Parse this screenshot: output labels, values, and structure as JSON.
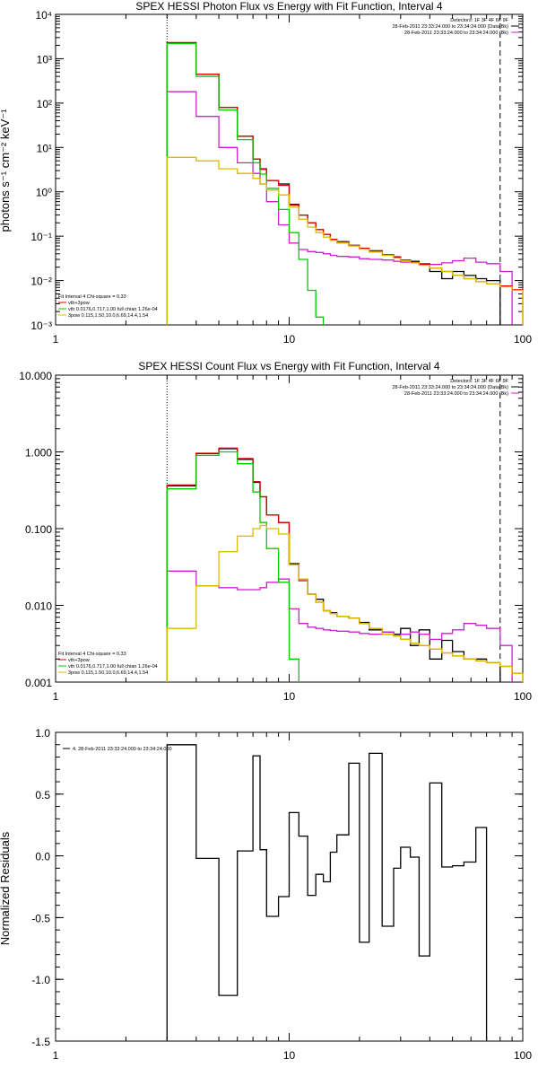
{
  "chart_data": [
    {
      "type": "line",
      "title": "SPEX HESSI Photon Flux vs Energy with Fit Function, Interval 4",
      "ylabel": "photons s⁻¹ cm⁻² keV⁻¹",
      "xlabel": "",
      "xscale": "log",
      "yscale": "log",
      "xlim": [
        1,
        100
      ],
      "ylim": [
        0.001,
        10000
      ],
      "x_tick_labels": [
        "1",
        "10",
        "100"
      ],
      "y_tick_labels": [
        "10⁻³",
        "10⁻²",
        "10⁻¹",
        "10⁰",
        "10¹",
        "10²",
        "10³",
        "10⁴"
      ],
      "legend_top_right": [
        "Detectors: 1F 3F 4F 6F 9F",
        "28-Feb-2011 23:33:24.000 to 23:34:24.000 (Data-Bk)",
        "28-Feb-2011 23:33:24.000 to 23:34:24.000 (Bk)"
      ],
      "legend_bottom_left": [
        "Fit Interval  4    Chi-square = 0.33",
        "vth+3pow",
        "vth 0.0176,0.717,1.00   full chian 1.26e-04",
        "3pow  0.115,1.50,10.0,6.69,14.4,1.54"
      ],
      "annotations": {
        "fit_range_low_keV": 3,
        "fit_range_high_keV": 80
      },
      "edges": [
        3,
        4,
        5,
        6,
        7,
        7.5,
        8,
        9,
        10,
        11,
        12,
        13,
        14,
        15,
        16,
        18,
        20,
        22,
        25,
        28,
        30,
        33,
        36,
        40,
        45,
        50,
        56,
        63,
        70,
        80,
        90,
        100
      ],
      "series": [
        {
          "name": "Data-Bk",
          "color": "#000000",
          "values": [
            2300,
            450,
            80,
            18,
            5.5,
            3.3,
            1.8,
            1.5,
            0.52,
            0.3,
            0.2,
            0.14,
            0.11,
            0.085,
            0.075,
            0.062,
            0.053,
            0.047,
            0.038,
            0.034,
            0.029,
            0.027,
            0.024,
            0.016,
            0.011,
            0.016,
            0.013,
            0.011,
            0.01,
            null,
            null
          ]
        },
        {
          "name": "Bk",
          "color": "#cc22cc",
          "values": [
            180,
            50,
            10,
            4.5,
            2.6,
            1.5,
            0.6,
            0.18,
            0.07,
            0.05,
            0.045,
            0.043,
            0.04,
            0.037,
            0.035,
            0.034,
            0.031,
            0.03,
            0.029,
            0.027,
            0.026,
            0.025,
            0.024,
            0.023,
            0.025,
            0.028,
            0.032,
            0.026,
            0.024,
            0.016,
            null
          ]
        },
        {
          "name": "vth+3pow",
          "color": "#dd0000",
          "values": [
            2300,
            450,
            80,
            18,
            5.5,
            3.2,
            1.8,
            1.4,
            0.5,
            0.3,
            0.2,
            0.14,
            0.11,
            0.085,
            0.074,
            0.062,
            0.053,
            0.046,
            0.038,
            0.033,
            0.029,
            0.026,
            0.023,
            0.019,
            0.016,
            0.013,
            0.011,
            0.0095,
            0.0085,
            0.0075,
            0.0062
          ]
        },
        {
          "name": "vth",
          "color": "#00cc00",
          "values": [
            2200,
            400,
            70,
            15,
            4.5,
            2.5,
            1.2,
            0.4,
            0.12,
            0.03,
            0.006,
            0.0015,
            null,
            null,
            null,
            null,
            null,
            null,
            null,
            null,
            null,
            null,
            null,
            null,
            null,
            null,
            null,
            null,
            null,
            null,
            null
          ]
        },
        {
          "name": "3pow",
          "color": "#ddbb00",
          "values": [
            6.0,
            5.0,
            3.3,
            2.6,
            2.0,
            1.5,
            1.1,
            0.85,
            0.45,
            0.24,
            0.16,
            0.12,
            0.095,
            0.08,
            0.07,
            0.06,
            0.051,
            0.044,
            0.037,
            0.032,
            0.028,
            0.025,
            0.022,
            0.019,
            0.016,
            0.013,
            0.011,
            0.0095,
            0.0085,
            0.0072,
            0.006
          ]
        }
      ]
    },
    {
      "type": "line",
      "title": "SPEX HESSI Count Flux vs Energy with Fit Function, Interval 4",
      "xscale": "log",
      "yscale": "log",
      "xlim": [
        1,
        100
      ],
      "ylim": [
        0.001,
        10
      ],
      "x_tick_labels": [
        "1",
        "10",
        "100"
      ],
      "y_tick_labels": [
        "0.001",
        "0.010",
        "0.100",
        "1.000",
        "10.000"
      ],
      "legend_top_right": [
        "Detectors: 1F 3F 4F 6F 9F",
        "28-Feb-2011 23:33:24.000 to 23:34:24.000 (Data-Bk)",
        "28-Feb-2011 23:33:24.000 to 23:34:24.000 (Bk)"
      ],
      "legend_bottom_left": [
        "Fit Interval  4    Chi-square = 0.33",
        "vth+3pow",
        "vth 0.0176,0.717,1.00   full chian 1.26e-04",
        "3pow  0.115,1.50,10.0,6.69,14.4,1.54"
      ],
      "annotations": {
        "fit_range_low_keV": 3,
        "fit_range_high_keV": 80
      },
      "edges": [
        3,
        4,
        5,
        6,
        7,
        7.5,
        8,
        9,
        10,
        11,
        12,
        13,
        14,
        15,
        16,
        18,
        20,
        22,
        25,
        28,
        30,
        33,
        36,
        40,
        45,
        50,
        56,
        63,
        70,
        80,
        90,
        100
      ],
      "series": [
        {
          "name": "Data-Bk",
          "color": "#000000",
          "values": [
            0.36,
            0.95,
            1.1,
            0.8,
            0.4,
            0.26,
            0.15,
            0.12,
            0.035,
            0.022,
            0.014,
            0.012,
            0.0085,
            0.008,
            0.0072,
            0.0068,
            0.006,
            0.0048,
            0.0045,
            0.0042,
            0.005,
            0.003,
            0.0048,
            0.002,
            0.0035,
            0.0025,
            0.002,
            0.002,
            0.0018,
            null,
            null
          ]
        },
        {
          "name": "Bk",
          "color": "#cc22cc",
          "values": [
            0.028,
            0.018,
            0.017,
            0.016,
            0.016,
            0.017,
            0.02,
            0.022,
            0.009,
            0.0058,
            0.0052,
            0.005,
            0.0048,
            0.0047,
            0.0046,
            0.0045,
            0.0043,
            0.0042,
            0.0045,
            0.004,
            0.0042,
            0.0045,
            0.0042,
            0.0036,
            0.0043,
            0.0048,
            0.0058,
            0.0055,
            0.005,
            0.003,
            null
          ]
        },
        {
          "name": "vth+3pow",
          "color": "#dd0000",
          "values": [
            0.37,
            0.96,
            1.12,
            0.82,
            0.41,
            0.26,
            0.15,
            0.12,
            0.034,
            0.021,
            0.014,
            0.011,
            0.0085,
            0.0078,
            0.0072,
            0.0068,
            0.0058,
            0.005,
            0.0042,
            0.004,
            0.0036,
            0.0032,
            0.003,
            0.0027,
            0.0024,
            0.0022,
            0.002,
            0.0019,
            0.0018,
            0.0016,
            0.0013
          ]
        },
        {
          "name": "vth",
          "color": "#00cc00",
          "values": [
            0.33,
            0.9,
            1.0,
            0.7,
            0.3,
            0.12,
            0.055,
            0.02,
            0.002,
            null,
            null,
            null,
            null,
            null,
            null,
            null,
            null,
            null,
            null,
            null,
            null,
            null,
            null,
            null,
            null,
            null,
            null,
            null,
            null,
            null,
            null
          ]
        },
        {
          "name": "3pow",
          "color": "#ddbb00",
          "values": [
            0.005,
            0.018,
            0.05,
            0.08,
            0.1,
            0.11,
            0.1,
            0.085,
            0.034,
            0.022,
            0.014,
            0.011,
            0.0085,
            0.0078,
            0.0072,
            0.0068,
            0.0058,
            0.005,
            0.0042,
            0.004,
            0.0036,
            0.0032,
            0.003,
            0.0027,
            0.0024,
            0.0022,
            0.002,
            0.0019,
            0.0018,
            0.0016,
            0.0013
          ]
        }
      ]
    },
    {
      "type": "line",
      "title": "",
      "ylabel": "Normalized Residuals",
      "xscale": "log",
      "yscale": "linear",
      "xlim": [
        1,
        100
      ],
      "ylim": [
        -1.5,
        1.0
      ],
      "x_tick_labels": [
        "1",
        "10",
        "100"
      ],
      "y_tick_labels": [
        "-1.5",
        "-1.0",
        "-0.5",
        "0.0",
        "0.5",
        "1.0"
      ],
      "legend": "4. 28-Feb-2011 23:33:24.000 to 23:34:24.000",
      "edges": [
        3,
        4,
        5,
        6,
        7,
        7.5,
        8,
        9,
        10,
        11,
        12,
        13,
        14,
        15,
        16,
        18,
        20,
        22,
        25,
        28,
        30,
        33,
        36,
        40,
        45,
        50,
        56,
        63,
        70,
        80
      ],
      "series": [
        {
          "name": "residuals",
          "color": "#000000",
          "values": [
            0.9,
            -0.02,
            -1.13,
            0.04,
            0.81,
            0.05,
            -0.49,
            -0.33,
            0.35,
            0.16,
            -0.32,
            -0.15,
            -0.21,
            0.03,
            0.17,
            0.75,
            -0.7,
            0.83,
            -0.57,
            -0.1,
            0.07,
            -0.01,
            -0.81,
            0.59,
            -0.09,
            -0.08,
            -0.05,
            0.23,
            null
          ]
        }
      ]
    }
  ]
}
